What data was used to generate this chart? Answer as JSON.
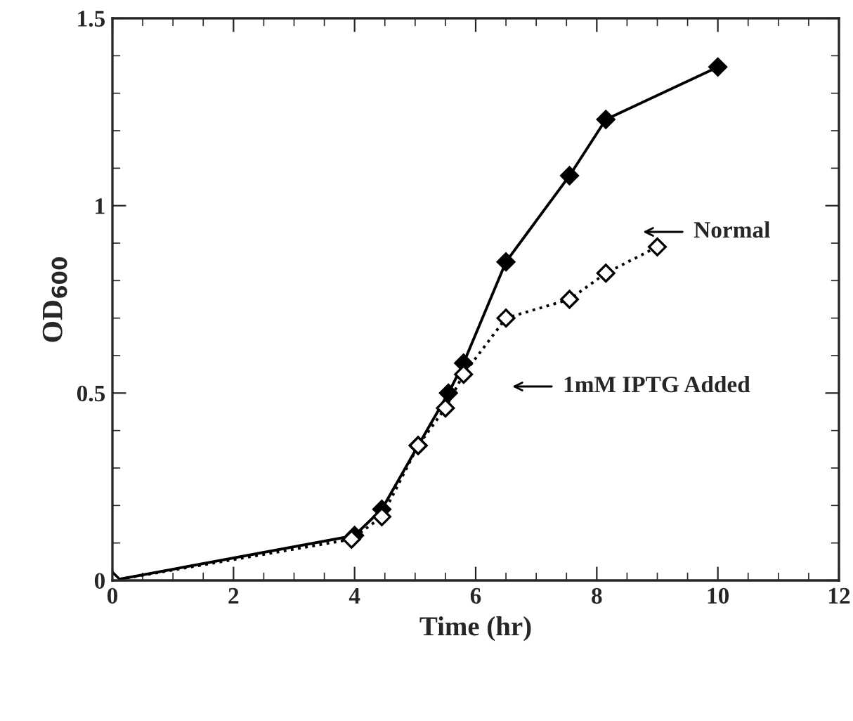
{
  "chart_data": {
    "type": "line",
    "xlabel": "Time (hr)",
    "ylabel": "OD$_{600}$",
    "xlim": [
      0,
      12
    ],
    "xticks": [
      0,
      2,
      4,
      6,
      8,
      10,
      12
    ],
    "ylim": [
      0,
      1.5
    ],
    "yticks": [
      0,
      0.5,
      1,
      1.5
    ],
    "series": [
      {
        "x": [
          0,
          4,
          4.45,
          5.05,
          5.55,
          5.8,
          6.5,
          7.55,
          8.15,
          10
        ],
        "values": [
          0,
          0.12,
          0.19,
          0.36,
          0.5,
          0.58,
          0.85,
          1.08,
          1.23,
          1.37
        ],
        "color": "#000000",
        "marker": "diamond",
        "line_style": "solid"
      },
      {
        "x": [
          0,
          3.95,
          4.45,
          5.05,
          5.5,
          5.8,
          6.5,
          7.55,
          8.15,
          9
        ],
        "values": [
          0,
          0.11,
          0.17,
          0.36,
          0.46,
          0.55,
          0.7,
          0.75,
          0.82,
          0.89
        ],
        "color": "#000000",
        "marker": "diamond",
        "line_style": "dotted"
      }
    ],
    "annotations": [
      "Normal",
      "1mM IPTG Added"
    ],
    "grid": false,
    "legend": false
  }
}
